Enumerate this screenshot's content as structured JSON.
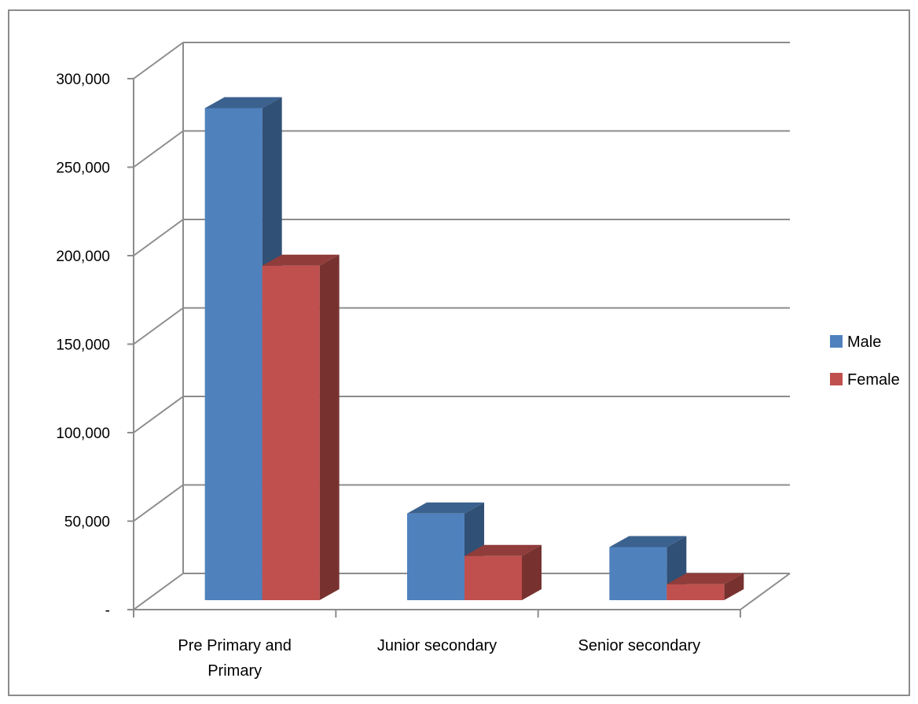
{
  "chart_data": {
    "type": "bar",
    "style": "3d-clustered-column",
    "categories": [
      "Pre Primary and Primary",
      "Junior secondary",
      "Senior secondary"
    ],
    "category_label_lines": [
      [
        "Pre Primary and",
        "Primary"
      ],
      [
        "Junior secondary"
      ],
      [
        "Senior secondary"
      ]
    ],
    "series": [
      {
        "name": "Male",
        "color": "#4f81bd",
        "values": [
          278000,
          49000,
          30000
        ]
      },
      {
        "name": "Female",
        "color": "#c0504d",
        "values": [
          189000,
          25000,
          9000
        ]
      }
    ],
    "y_ticks": [
      0,
      50000,
      100000,
      150000,
      200000,
      250000,
      300000
    ],
    "y_tick_labels": [
      "-",
      "50,000",
      "100,000",
      "150,000",
      "200,000",
      "250,000",
      "300,000"
    ],
    "ylim": [
      0,
      300000
    ],
    "grid": true,
    "legend_position": "right",
    "title": "",
    "xlabel": "",
    "ylabel": ""
  }
}
